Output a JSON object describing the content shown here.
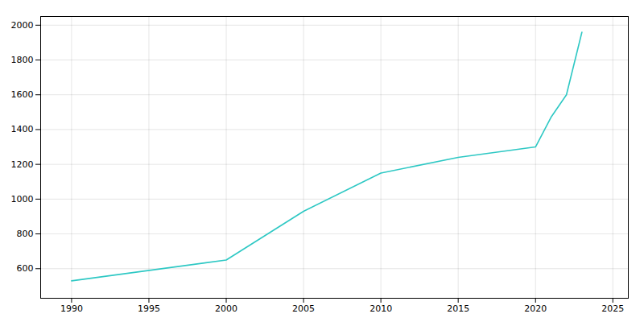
{
  "chart_data": {
    "type": "line",
    "x": [
      1990,
      2000,
      2005,
      2010,
      2015,
      2020,
      2021,
      2022,
      2023
    ],
    "values": [
      530,
      650,
      930,
      1150,
      1240,
      1300,
      1470,
      1600,
      1960
    ],
    "color": "#2ec8c4",
    "xlim": [
      1988,
      2026
    ],
    "ylim": [
      430,
      2050
    ],
    "xticks": [
      1990,
      1995,
      2000,
      2005,
      2010,
      2015,
      2020,
      2025
    ],
    "yticks": [
      600,
      800,
      1000,
      1200,
      1400,
      1600,
      1800,
      2000
    ],
    "grid": true
  }
}
